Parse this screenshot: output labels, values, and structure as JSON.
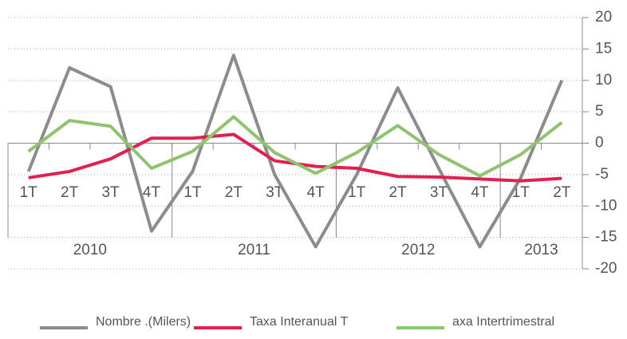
{
  "chart_data": {
    "type": "line",
    "categories": [
      "1T",
      "2T",
      "3T",
      "4T",
      "1T",
      "2T",
      "3T",
      "4T",
      "1T",
      "2T",
      "3T",
      "4T",
      "1T",
      "2T"
    ],
    "groups": [
      {
        "label": "2010",
        "count": 4
      },
      {
        "label": "2011",
        "count": 4
      },
      {
        "label": "2012",
        "count": 4
      },
      {
        "label": "2013",
        "count": 2
      }
    ],
    "series": [
      {
        "name": "Nombre .(Milers)",
        "color": "#8c8c8c",
        "values": [
          -4.5,
          12,
          9,
          -14,
          -4.5,
          14,
          -5,
          -16.5,
          -5,
          8.8,
          -4,
          -16.5,
          -5.5,
          10
        ]
      },
      {
        "name": "Taxa Interanual T",
        "color": "#e0204e",
        "values": [
          -5.5,
          -4.5,
          -2.5,
          0.8,
          0.8,
          1.4,
          -2.8,
          -3.7,
          -4,
          -5.3,
          -5.4,
          -5.7,
          -6,
          -5.6
        ]
      },
      {
        "name": "axa Intertrimestral",
        "color": "#8fc46e",
        "values": [
          -1.3,
          3.6,
          2.7,
          -4,
          -1.3,
          4.2,
          -1.5,
          -4.8,
          -1.5,
          2.8,
          -1.8,
          -5.2,
          -1.8,
          3.3
        ]
      }
    ],
    "ylim": [
      -20,
      20
    ],
    "yticks": [
      20,
      15,
      10,
      5,
      0,
      -5,
      -10,
      -15,
      -20
    ],
    "grid": true,
    "legend": "bottom"
  }
}
